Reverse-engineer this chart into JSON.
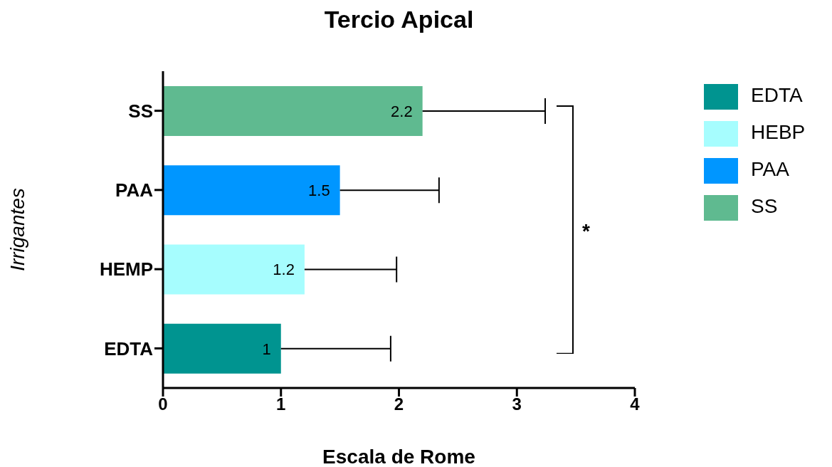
{
  "chart_data": {
    "type": "bar",
    "orientation": "horizontal",
    "stacked": true,
    "title": "Tercio Apical",
    "xlabel": "Escala de Rome",
    "ylabel": "Irrigantes",
    "categories": [
      "SS",
      "PAA",
      "HEMP",
      "EDTA"
    ],
    "series": [
      {
        "name": "EDTA",
        "color": "#009490",
        "values": [
          null,
          null,
          null,
          1
        ],
        "errors": [
          null,
          null,
          null,
          [
            1,
            1.93
          ]
        ]
      },
      {
        "name": "HEBP",
        "color": "#a6fdfe",
        "values": [
          null,
          null,
          1.2,
          null
        ],
        "errors": [
          null,
          null,
          [
            1.2,
            1.98
          ],
          null
        ]
      },
      {
        "name": "PAA",
        "color": "#0096ff",
        "values": [
          null,
          1.5,
          null,
          null
        ],
        "errors": [
          null,
          [
            1.5,
            2.34
          ],
          null,
          null
        ]
      },
      {
        "name": "SS",
        "color": "#5fba90",
        "values": [
          2.2,
          null,
          null,
          null
        ],
        "errors": [
          [
            2.2,
            3.24
          ],
          null,
          null,
          null
        ]
      }
    ],
    "xlim": [
      0,
      4
    ],
    "xticks": [
      0,
      1,
      2,
      3,
      4
    ],
    "data_labels": true,
    "legend": "top right",
    "grid": false,
    "annotations": [
      "*"
    ]
  }
}
